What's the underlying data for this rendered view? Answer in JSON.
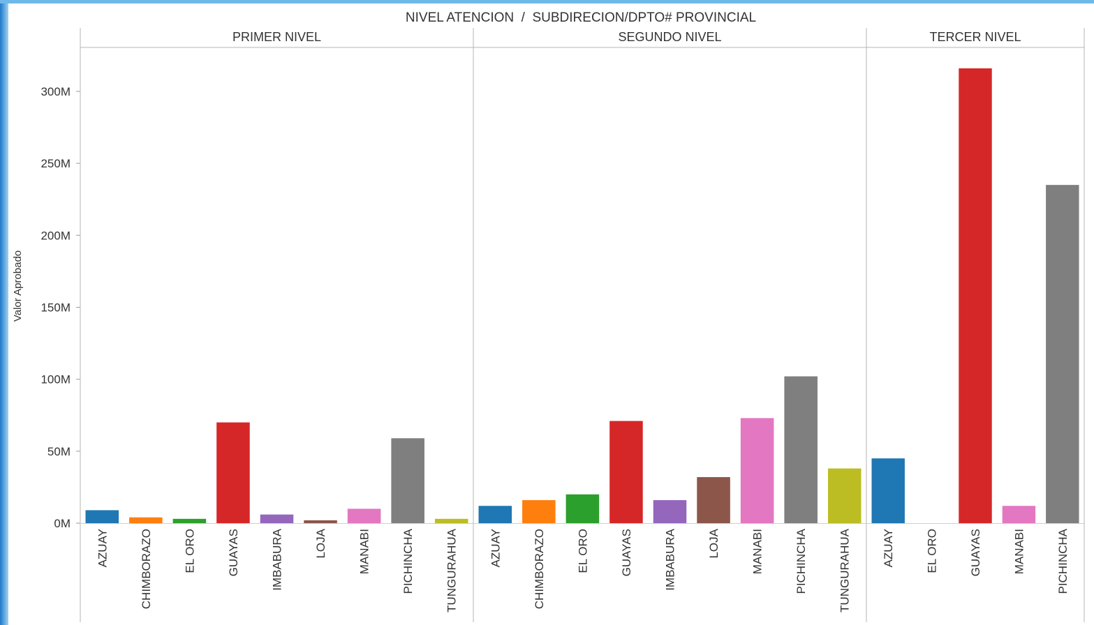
{
  "chart_data": {
    "type": "bar",
    "title": "NIVEL ATENCION  /  SUBDIRECION/DPTO# PROVINCIAL",
    "ylabel": "Valor Aprobado",
    "xlabel": "",
    "ylim": [
      0,
      320
    ],
    "y_unit": "M",
    "yticks": [
      {
        "value": 0,
        "label": "0M"
      },
      {
        "value": 50,
        "label": "50M"
      },
      {
        "value": 100,
        "label": "100M"
      },
      {
        "value": 150,
        "label": "150M"
      },
      {
        "value": 200,
        "label": "200M"
      },
      {
        "value": 250,
        "label": "250M"
      },
      {
        "value": 300,
        "label": "300M"
      }
    ],
    "grid": false,
    "legend": "none",
    "colors": {
      "AZUAY": "#1f77b4",
      "CHIMBORAZO": "#ff7f0e",
      "EL ORO": "#2ca02c",
      "GUAYAS": "#d62728",
      "IMBABURA": "#9467bd",
      "LOJA": "#8c564b",
      "MANABI": "#e377c2",
      "PICHINCHA": "#7f7f7f",
      "TUNGURAHUA": "#bcbd22"
    },
    "panels": [
      {
        "name": "PRIMER NIVEL",
        "categories": [
          "AZUAY",
          "CHIMBORAZO",
          "EL ORO",
          "GUAYAS",
          "IMBABURA",
          "LOJA",
          "MANABI",
          "PICHINCHA",
          "TUNGURAHUA"
        ],
        "values": [
          9,
          4,
          3,
          70,
          6,
          2,
          10,
          59,
          3
        ]
      },
      {
        "name": "SEGUNDO NIVEL",
        "categories": [
          "AZUAY",
          "CHIMBORAZO",
          "EL ORO",
          "GUAYAS",
          "IMBABURA",
          "LOJA",
          "MANABI",
          "PICHINCHA",
          "TUNGURAHUA"
        ],
        "values": [
          12,
          16,
          20,
          71,
          16,
          32,
          73,
          102,
          38
        ]
      },
      {
        "name": "TERCER NIVEL",
        "categories": [
          "AZUAY",
          "EL ORO",
          "GUAYAS",
          "MANABI",
          "PICHINCHA"
        ],
        "values": [
          45,
          0,
          316,
          12,
          235
        ]
      }
    ]
  }
}
